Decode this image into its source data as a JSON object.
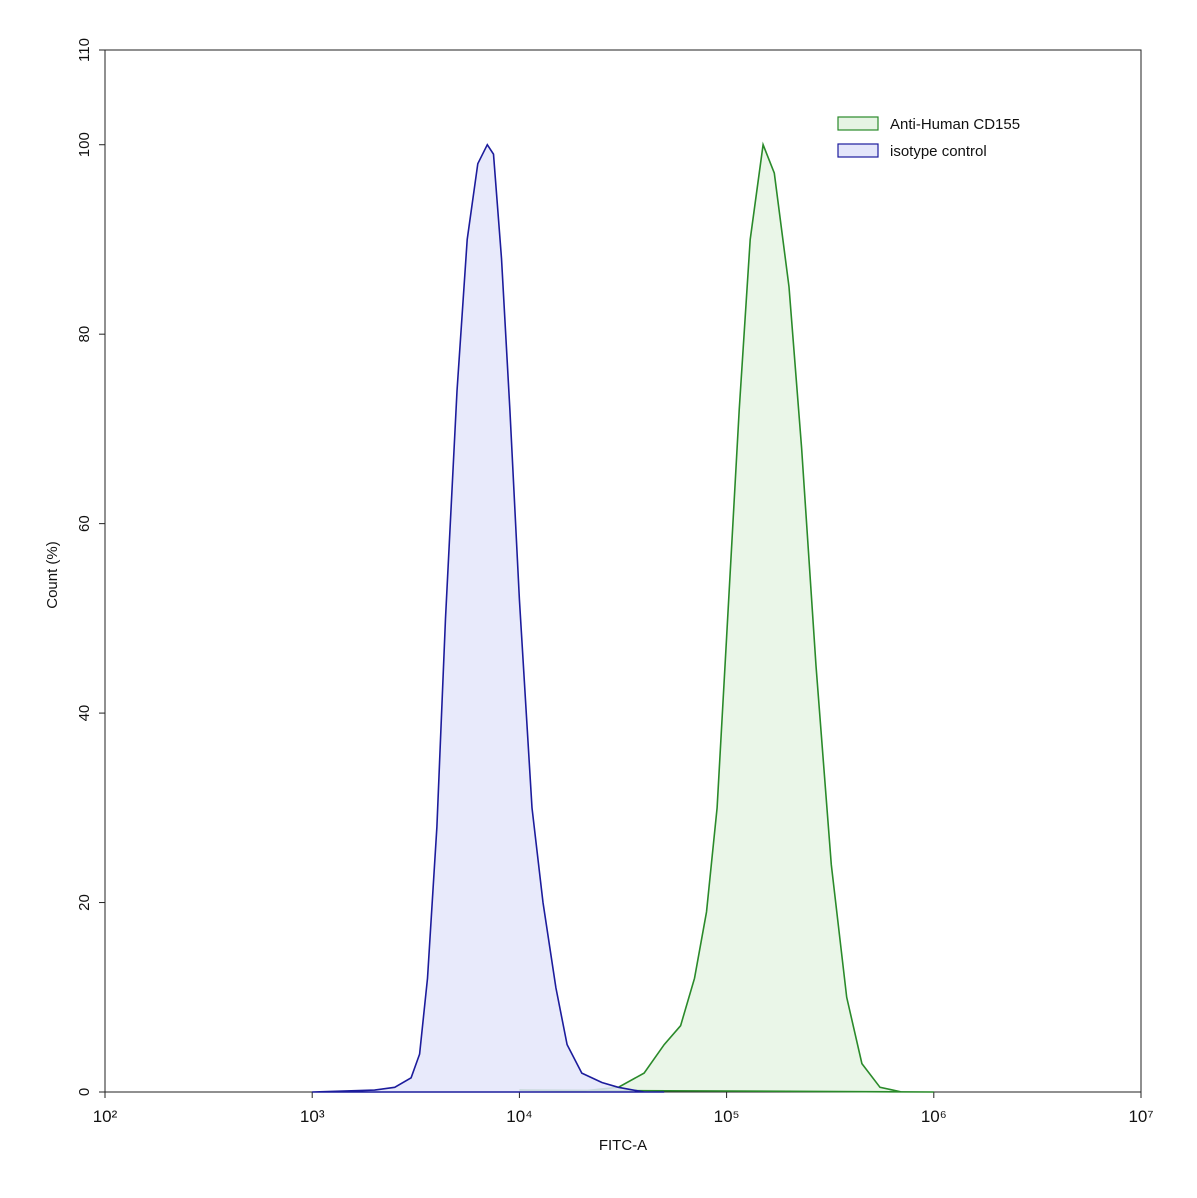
{
  "chart_data": {
    "type": "area",
    "x_label": "FITC-A",
    "y_label": "Count  (%)",
    "xscale": "log",
    "xlim": [
      100,
      10000000
    ],
    "ylim": [
      0,
      110
    ],
    "xticks": [
      {
        "value": 100,
        "label": "10²"
      },
      {
        "value": 1000,
        "label": "10³"
      },
      {
        "value": 10000,
        "label": "10⁴"
      },
      {
        "value": 100000,
        "label": "10⁵"
      },
      {
        "value": 1000000,
        "label": "10⁶"
      },
      {
        "value": 10000000,
        "label": "10⁷"
      }
    ],
    "yticks": [
      0,
      20,
      40,
      60,
      80,
      100,
      110
    ],
    "legend": "upper right",
    "series": [
      {
        "name": "Anti-Human CD155",
        "color": "#2a8a2a",
        "fill": "#e6f4e4",
        "x": [
          10000,
          20000,
          30000,
          40000,
          50000,
          60000,
          70000,
          80000,
          90000,
          100000,
          115000,
          130000,
          150000,
          170000,
          200000,
          230000,
          270000,
          320000,
          380000,
          450000,
          550000,
          700000,
          1000000
        ],
        "values": [
          0.2,
          0.1,
          0.5,
          2,
          5,
          7,
          12,
          19,
          30,
          48,
          72,
          90,
          100,
          97,
          85,
          68,
          45,
          24,
          10,
          3,
          0.5,
          0,
          0
        ]
      },
      {
        "name": "isotype control",
        "color": "#1c1c9c",
        "fill": "#e4e6fa",
        "x": [
          1000,
          2000,
          2500,
          3000,
          3300,
          3600,
          4000,
          4400,
          5000,
          5600,
          6300,
          7000,
          7500,
          8200,
          9000,
          10000,
          11500,
          13000,
          15000,
          17000,
          20000,
          25000,
          30000,
          40000,
          50000
        ],
        "values": [
          0,
          0.2,
          0.5,
          1.5,
          4,
          12,
          28,
          50,
          74,
          90,
          98,
          100,
          99,
          88,
          72,
          52,
          30,
          20,
          11,
          5,
          2,
          1,
          0.5,
          0,
          0
        ]
      }
    ]
  }
}
